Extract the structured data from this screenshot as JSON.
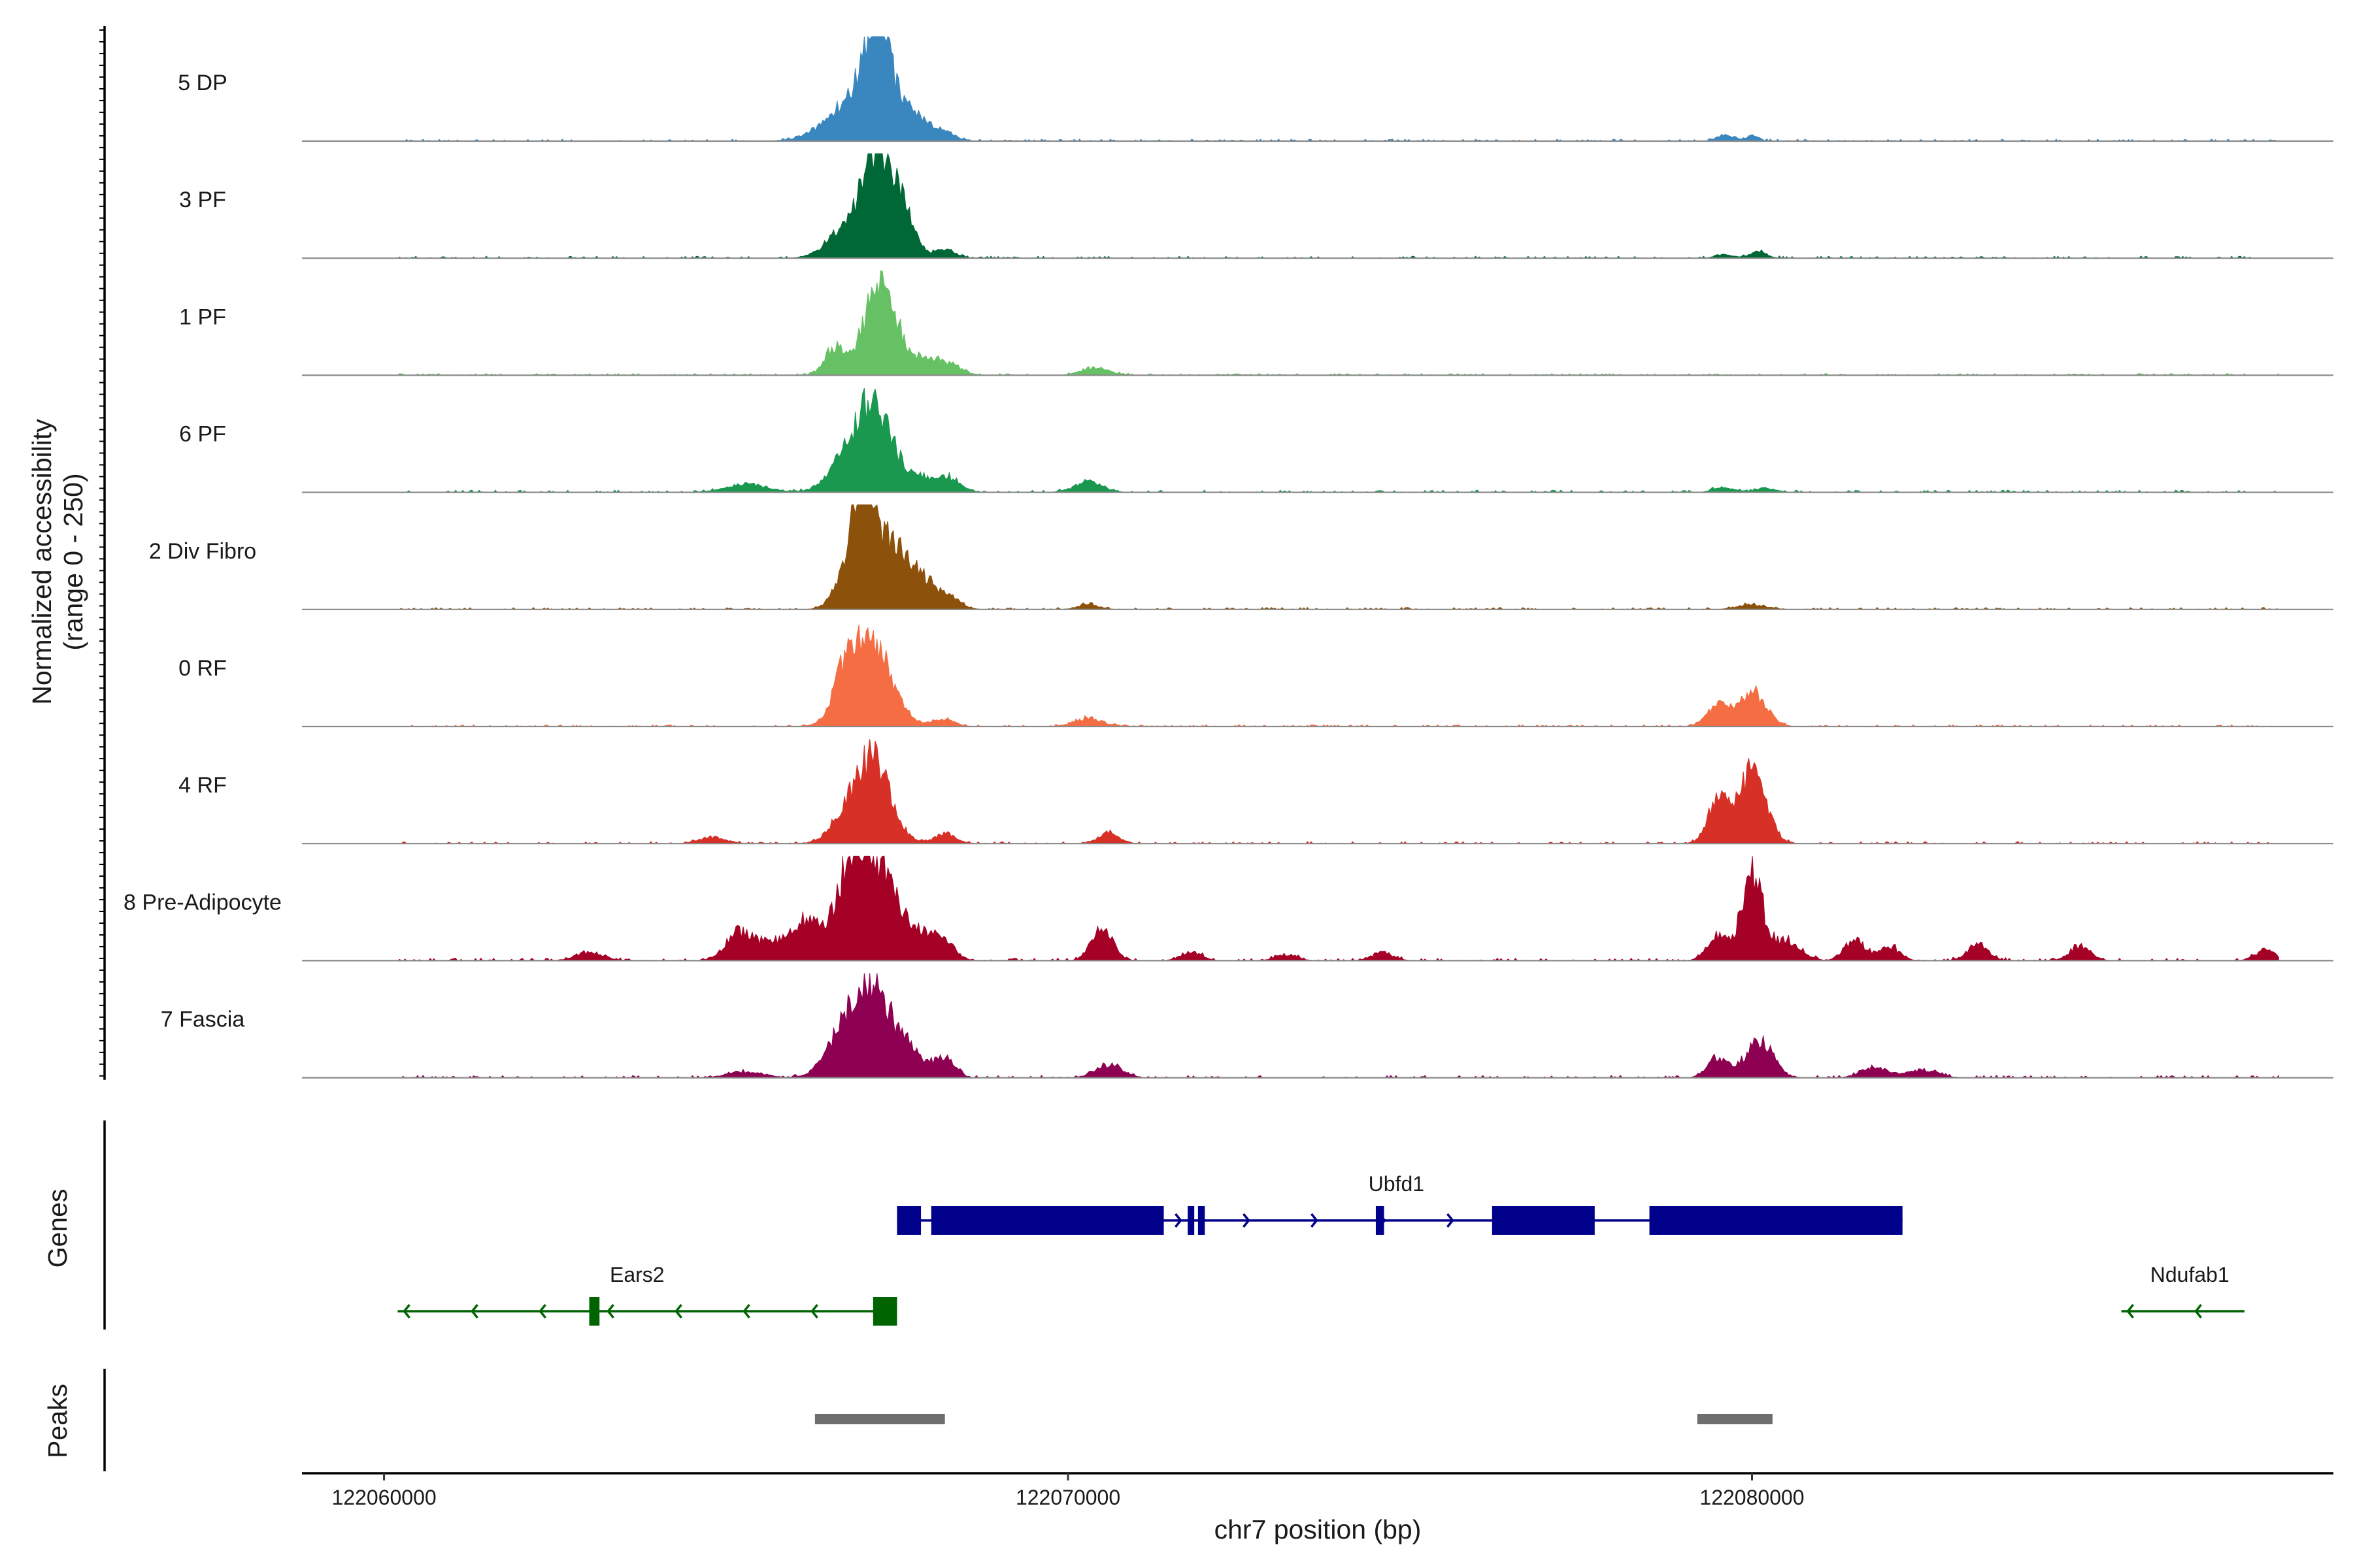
{
  "chart_data": {
    "type": "area",
    "title": "",
    "ylabel_line1": "Normalized accessibility",
    "ylabel_line2": "(range 0 - 250)",
    "xlabel": "chr7 position (bp)",
    "xlim": [
      122058800,
      122088500
    ],
    "ylim": [
      0,
      250
    ],
    "x_ticks": [
      122060000,
      122070000,
      122080000
    ],
    "x_tick_labels": [
      "122060000",
      "122070000",
      "122080000"
    ],
    "genes_label": "Genes",
    "peaks_label": "Peaks",
    "tracks": [
      {
        "name": "5 DP",
        "color": "#3a87bf",
        "peaks": [
          [
            122067200,
            230,
            180
          ],
          [
            122066900,
            100,
            400
          ],
          [
            122067700,
            60,
            300
          ],
          [
            122068200,
            12,
            150
          ],
          [
            122079600,
            15,
            120
          ],
          [
            122080000,
            12,
            100
          ]
        ],
        "noise": 4,
        "seed": 11
      },
      {
        "name": "3 PF",
        "color": "#006837",
        "peaks": [
          [
            122067150,
            220,
            200
          ],
          [
            122067500,
            150,
            200
          ],
          [
            122066700,
            60,
            250
          ],
          [
            122068200,
            20,
            150
          ],
          [
            122079600,
            10,
            120
          ],
          [
            122080100,
            15,
            120
          ]
        ],
        "noise": 4,
        "seed": 23
      },
      {
        "name": "1 PF",
        "color": "#66c164",
        "peaks": [
          [
            122067250,
            230,
            220
          ],
          [
            122066600,
            70,
            150
          ],
          [
            122067900,
            40,
            300
          ],
          [
            122068300,
            12,
            150
          ],
          [
            122070400,
            18,
            200
          ]
        ],
        "noise": 3,
        "seed": 37
      },
      {
        "name": "6 PF",
        "color": "#1a9850",
        "peaks": [
          [
            122067150,
            210,
            250
          ],
          [
            122066700,
            60,
            250
          ],
          [
            122067800,
            40,
            300
          ],
          [
            122068300,
            25,
            150
          ],
          [
            122070300,
            25,
            200
          ],
          [
            122065300,
            20,
            300
          ],
          [
            122079600,
            12,
            150
          ],
          [
            122080200,
            10,
            150
          ]
        ],
        "noise": 5,
        "seed": 41
      },
      {
        "name": "2 Div Fibro",
        "color": "#8c510a",
        "peaks": [
          [
            122067000,
            250,
            150
          ],
          [
            122067400,
            160,
            250
          ],
          [
            122066800,
            80,
            200
          ],
          [
            122067900,
            60,
            250
          ],
          [
            122068300,
            15,
            150
          ],
          [
            122070300,
            12,
            150
          ],
          [
            122080000,
            12,
            200
          ]
        ],
        "noise": 4,
        "seed": 53
      },
      {
        "name": "0 RF",
        "color": "#f46d43",
        "peaks": [
          [
            122067100,
            220,
            300
          ],
          [
            122066700,
            70,
            150
          ],
          [
            122068200,
            18,
            150
          ],
          [
            122070300,
            20,
            200
          ],
          [
            122079500,
            55,
            150
          ],
          [
            122080000,
            85,
            200
          ]
        ],
        "noise": 3,
        "seed": 67
      },
      {
        "name": "4 RF",
        "color": "#d73027",
        "peaks": [
          [
            122067150,
            210,
            250
          ],
          [
            122066700,
            50,
            200
          ],
          [
            122068200,
            25,
            150
          ],
          [
            122070600,
            25,
            150
          ],
          [
            122079500,
            100,
            150
          ],
          [
            122080000,
            180,
            200
          ],
          [
            122064800,
            15,
            200
          ]
        ],
        "noise": 4,
        "seed": 79
      },
      {
        "name": "8 Pre-Adipocyte",
        "color": "#a50026",
        "peaks": [
          [
            122067150,
            240,
            300
          ],
          [
            122066800,
            150,
            200
          ],
          [
            122066200,
            100,
            200
          ],
          [
            122065200,
            70,
            200
          ],
          [
            122065700,
            45,
            200
          ],
          [
            122067800,
            60,
            250
          ],
          [
            122068200,
            40,
            150
          ],
          [
            122070500,
            80,
            150
          ],
          [
            122079500,
            60,
            150
          ],
          [
            122080000,
            220,
            150
          ],
          [
            122080500,
            50,
            200
          ],
          [
            122081500,
            50,
            150
          ],
          [
            122082000,
            35,
            150
          ],
          [
            122083300,
            40,
            150
          ],
          [
            122084800,
            35,
            150
          ],
          [
            122087500,
            25,
            150
          ],
          [
            122063000,
            20,
            200
          ],
          [
            122071800,
            20,
            150
          ],
          [
            122074600,
            20,
            150
          ],
          [
            122073200,
            15,
            150
          ]
        ],
        "noise": 6,
        "seed": 97
      },
      {
        "name": "7 Fascia",
        "color": "#8e0152",
        "peaks": [
          [
            122067150,
            200,
            300
          ],
          [
            122066700,
            80,
            250
          ],
          [
            122068200,
            45,
            150
          ],
          [
            122067700,
            40,
            250
          ],
          [
            122070600,
            30,
            200
          ],
          [
            122079500,
            50,
            150
          ],
          [
            122080100,
            90,
            200
          ],
          [
            122081800,
            25,
            200
          ],
          [
            122082500,
            20,
            200
          ],
          [
            122065300,
            15,
            250
          ]
        ],
        "noise": 5,
        "seed": 83
      }
    ],
    "genes": [
      {
        "name": "Ubfd1",
        "strand": "+",
        "color": "#00008b",
        "start": 122067500,
        "end": 122082200,
        "exons": [
          [
            122067500,
            122067850
          ],
          [
            122068000,
            122071400
          ],
          [
            122071750,
            122071800
          ],
          [
            122071900,
            122072000
          ],
          [
            122074500,
            122074620
          ],
          [
            122076200,
            122077700
          ],
          [
            122078500,
            122082200
          ]
        ],
        "label_x": 122074800
      },
      {
        "name": "Ears2",
        "strand": "-",
        "color": "#006400",
        "start": 122060200,
        "end": 122067500,
        "exons": [
          [
            122063000,
            122063150
          ],
          [
            122067150,
            122067500
          ]
        ],
        "label_x": 122063700
      },
      {
        "name": "Ndufab1",
        "strand": "-",
        "color": "#006400",
        "start": 122085400,
        "end": 122087200,
        "exons": [],
        "label_x": 122086400
      }
    ],
    "peak_regions": [
      [
        122066300,
        122068200
      ],
      [
        122079200,
        122080300
      ]
    ],
    "peak_color": "#6e6e6e"
  }
}
